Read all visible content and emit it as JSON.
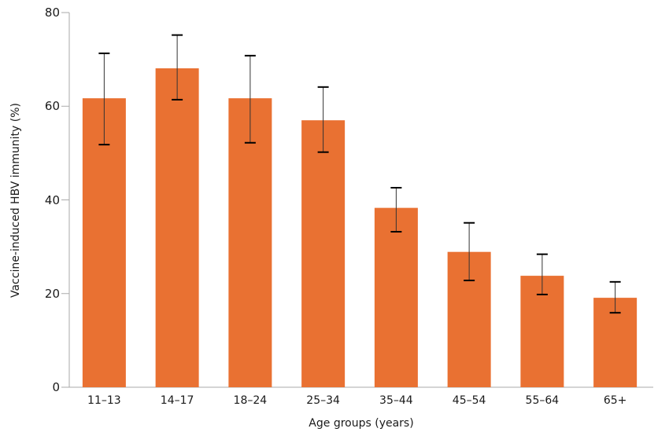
{
  "chart_data": {
    "type": "bar",
    "title": "",
    "xlabel": "Age groups (years)",
    "ylabel": "Vaccine-induced HBV immunity (%)",
    "ylim": [
      0,
      80
    ],
    "yticks": [
      0,
      20,
      40,
      60,
      80
    ],
    "grid": false,
    "legend": null,
    "categories": [
      "11–13",
      "14–17",
      "18–24",
      "25–34",
      "35–44",
      "45–54",
      "55–64",
      "65+"
    ],
    "values": [
      61.7,
      68.1,
      61.7,
      57.0,
      38.3,
      28.9,
      23.8,
      19.1
    ],
    "error_upper": [
      71.3,
      75.2,
      70.8,
      64.1,
      42.6,
      35.1,
      28.4,
      22.5
    ],
    "error_lower": [
      51.8,
      61.4,
      52.2,
      50.2,
      33.2,
      22.8,
      19.8,
      15.9
    ],
    "bar_color": "#E97132",
    "error_bar_color": "#000000",
    "axis_color": "#AAAAAA"
  }
}
